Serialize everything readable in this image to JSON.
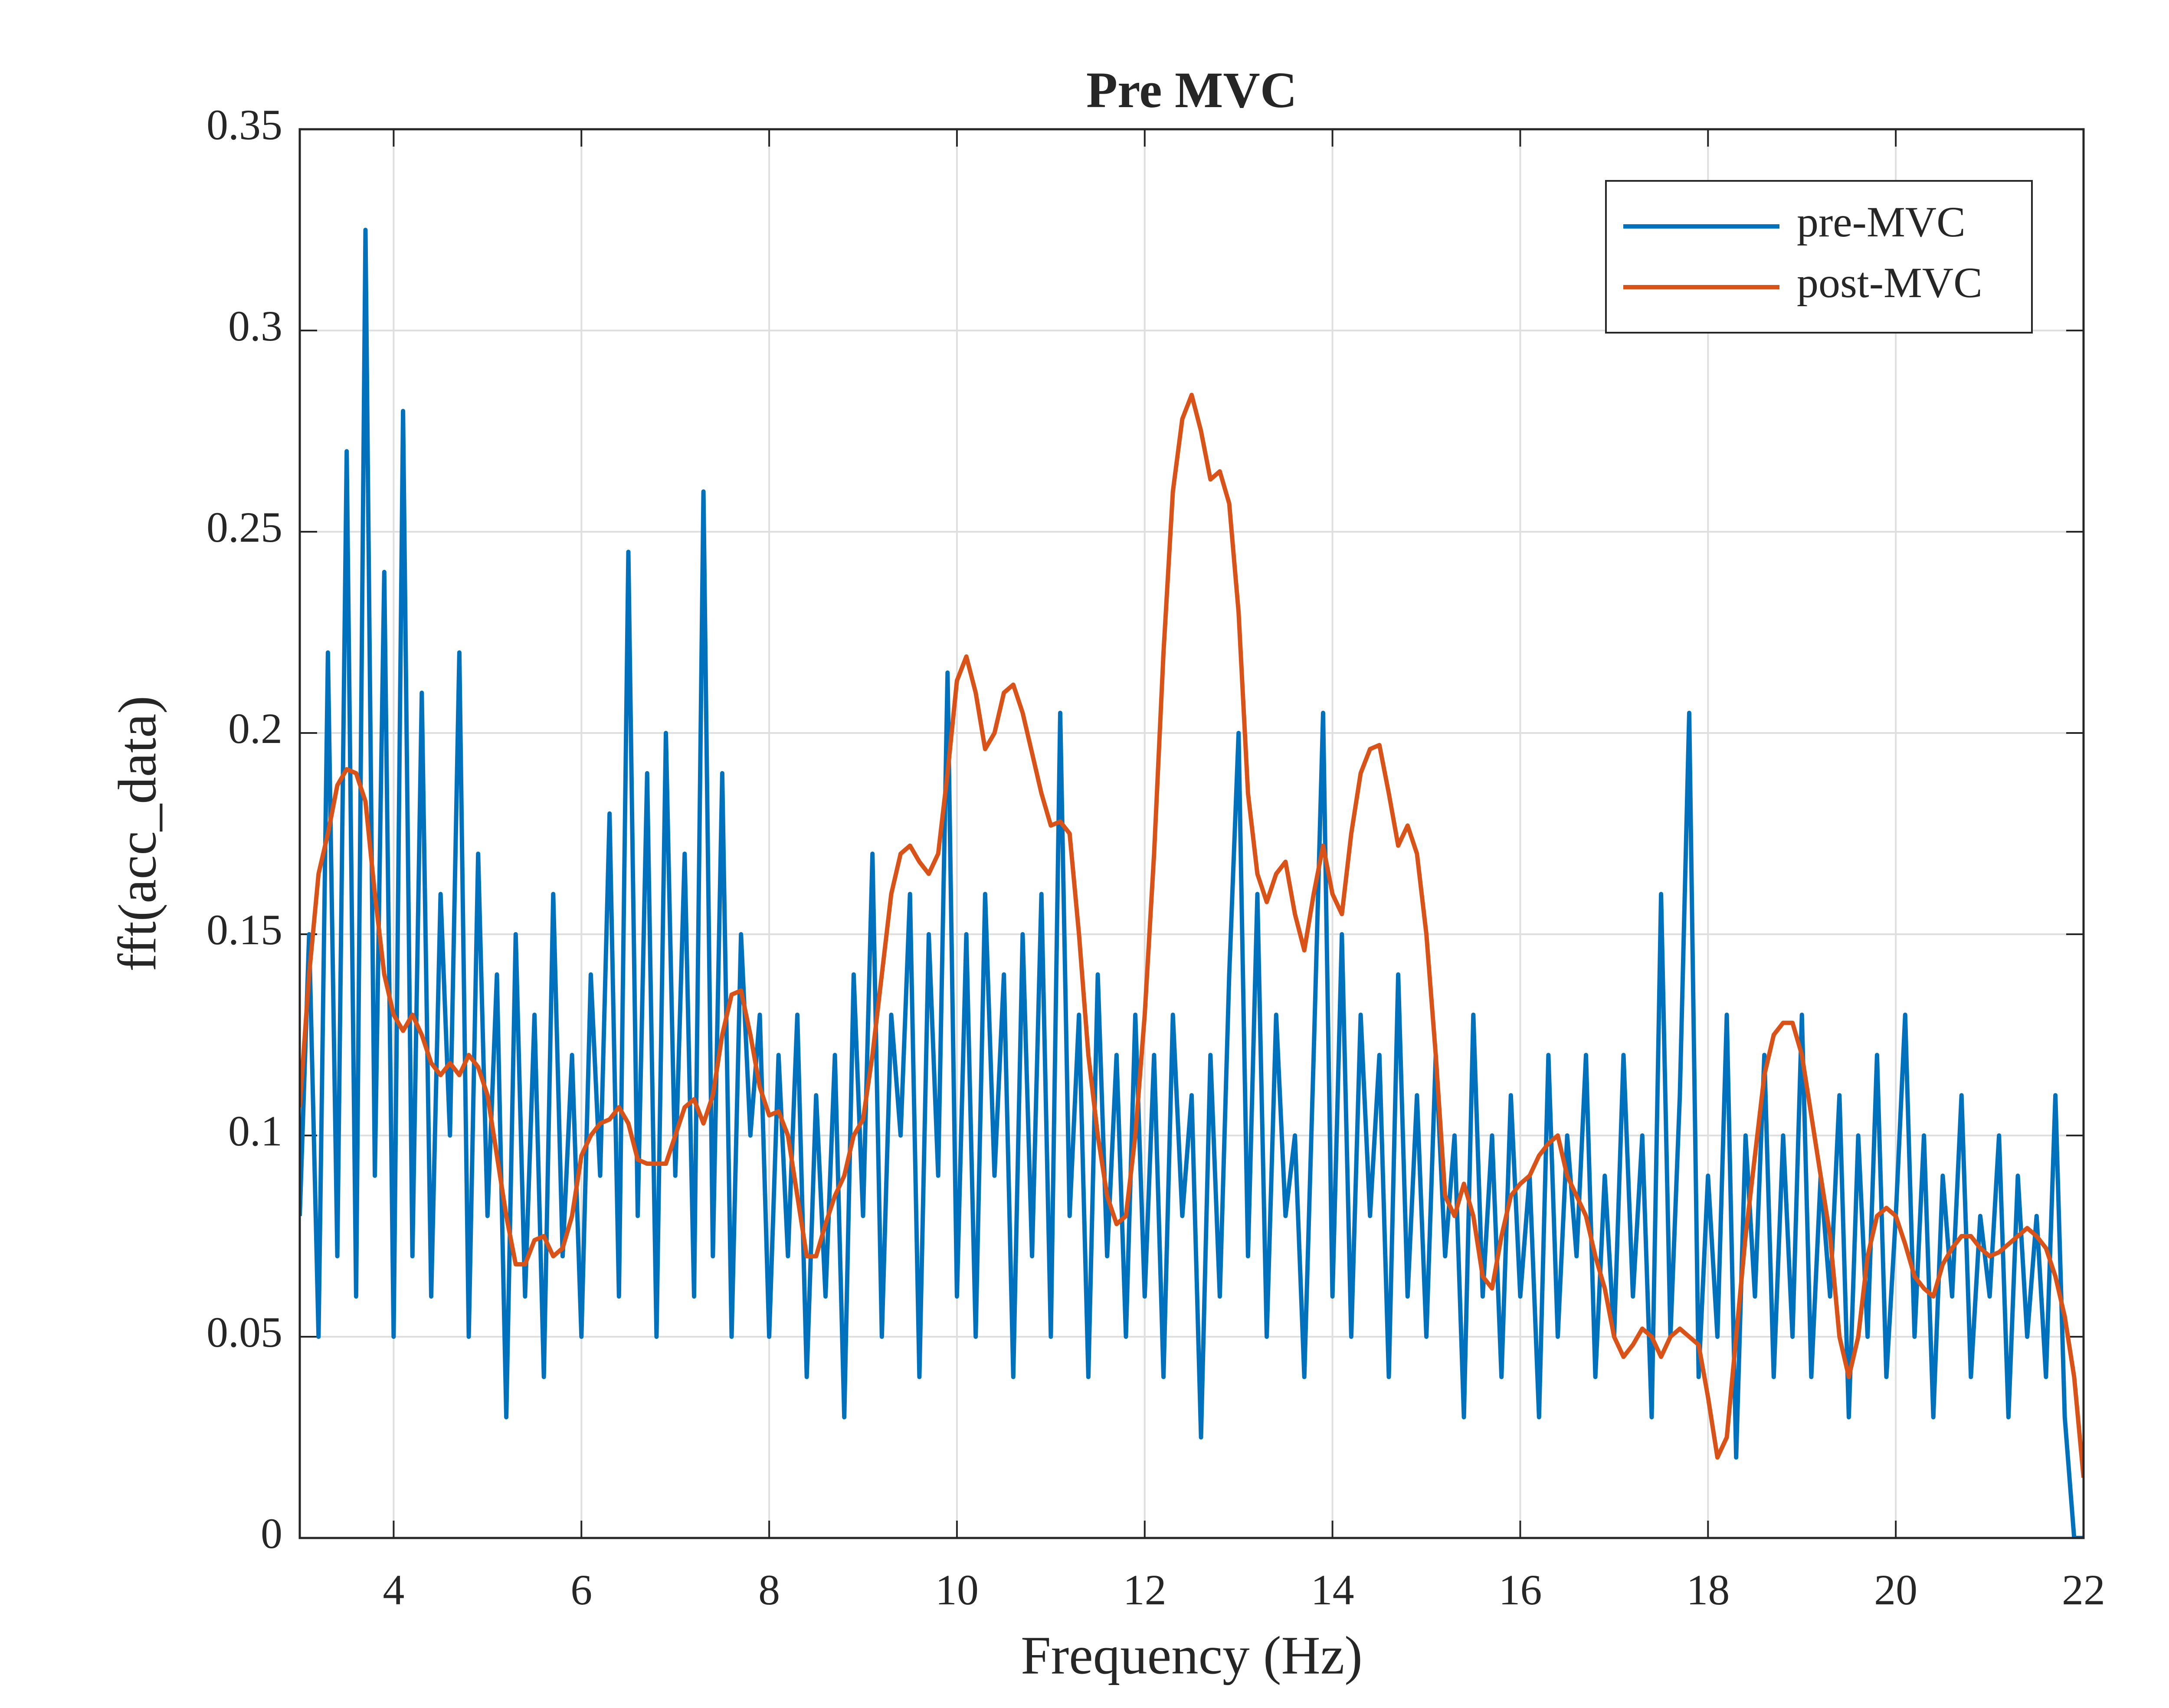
{
  "chart_data": {
    "type": "line",
    "title": "Pre MVC",
    "x_label": "Frequency (Hz)",
    "y_label": "fft(acc_data)",
    "x": [
      3,
      3.1,
      3.2,
      3.3,
      3.4,
      3.5,
      3.6,
      3.7,
      3.8,
      3.9,
      4,
      4.1,
      4.2,
      4.3,
      4.4,
      4.5,
      4.6,
      4.7,
      4.8,
      4.9,
      5,
      5.1,
      5.2,
      5.3,
      5.4,
      5.5,
      5.6,
      5.7,
      5.8,
      5.9,
      6,
      6.1,
      6.2,
      6.3,
      6.4,
      6.5,
      6.6,
      6.7,
      6.8,
      6.9,
      7,
      7.1,
      7.2,
      7.3,
      7.4,
      7.5,
      7.6,
      7.7,
      7.8,
      7.9,
      8,
      8.1,
      8.2,
      8.3,
      8.4,
      8.5,
      8.6,
      8.7,
      8.8,
      8.9,
      9,
      9.1,
      9.2,
      9.3,
      9.4,
      9.5,
      9.6,
      9.7,
      9.8,
      9.9,
      10,
      10.1,
      10.2,
      10.3,
      10.4,
      10.5,
      10.6,
      10.7,
      10.8,
      10.9,
      11,
      11.1,
      11.2,
      11.3,
      11.4,
      11.5,
      11.6,
      11.7,
      11.8,
      11.9,
      12,
      12.1,
      12.2,
      12.3,
      12.4,
      12.5,
      12.6,
      12.7,
      12.8,
      12.9,
      13,
      13.1,
      13.2,
      13.3,
      13.4,
      13.5,
      13.6,
      13.7,
      13.8,
      13.9,
      14,
      14.1,
      14.2,
      14.3,
      14.4,
      14.5,
      14.6,
      14.7,
      14.8,
      14.9,
      15,
      15.1,
      15.2,
      15.3,
      15.4,
      15.5,
      15.6,
      15.7,
      15.8,
      15.9,
      16,
      16.1,
      16.2,
      16.3,
      16.4,
      16.5,
      16.6,
      16.7,
      16.8,
      16.9,
      17,
      17.1,
      17.2,
      17.3,
      17.4,
      17.5,
      17.6,
      17.7,
      17.8,
      17.9,
      18,
      18.1,
      18.2,
      18.3,
      18.4,
      18.5,
      18.6,
      18.7,
      18.8,
      18.9,
      19,
      19.1,
      19.2,
      19.3,
      19.4,
      19.5,
      19.6,
      19.7,
      19.8,
      19.9,
      20,
      20.1,
      20.2,
      20.3,
      20.4,
      20.5,
      20.6,
      20.7,
      20.8,
      20.9,
      21,
      21.1,
      21.2,
      21.3,
      21.4,
      21.5,
      21.6,
      21.7,
      21.8,
      21.9,
      22
    ],
    "series": [
      {
        "name": "pre-MVC",
        "color": "#0072bd",
        "values": [
          0.08,
          0.15,
          0.05,
          0.22,
          0.07,
          0.27,
          0.06,
          0.325,
          0.09,
          0.24,
          0.05,
          0.28,
          0.07,
          0.21,
          0.06,
          0.16,
          0.1,
          0.22,
          0.05,
          0.17,
          0.08,
          0.14,
          0.03,
          0.15,
          0.06,
          0.13,
          0.04,
          0.16,
          0.07,
          0.12,
          0.05,
          0.14,
          0.09,
          0.18,
          0.06,
          0.245,
          0.08,
          0.19,
          0.05,
          0.2,
          0.09,
          0.17,
          0.06,
          0.26,
          0.07,
          0.19,
          0.05,
          0.15,
          0.1,
          0.13,
          0.05,
          0.12,
          0.07,
          0.13,
          0.04,
          0.11,
          0.06,
          0.12,
          0.03,
          0.14,
          0.08,
          0.17,
          0.05,
          0.13,
          0.1,
          0.16,
          0.04,
          0.15,
          0.09,
          0.215,
          0.06,
          0.15,
          0.05,
          0.16,
          0.09,
          0.14,
          0.04,
          0.15,
          0.07,
          0.16,
          0.05,
          0.205,
          0.08,
          0.13,
          0.04,
          0.14,
          0.07,
          0.12,
          0.05,
          0.13,
          0.06,
          0.12,
          0.04,
          0.13,
          0.08,
          0.11,
          0.025,
          0.12,
          0.06,
          0.14,
          0.2,
          0.07,
          0.16,
          0.05,
          0.13,
          0.08,
          0.1,
          0.04,
          0.12,
          0.205,
          0.06,
          0.15,
          0.05,
          0.13,
          0.08,
          0.12,
          0.04,
          0.14,
          0.06,
          0.11,
          0.05,
          0.12,
          0.07,
          0.1,
          0.03,
          0.13,
          0.06,
          0.1,
          0.04,
          0.11,
          0.06,
          0.09,
          0.03,
          0.12,
          0.05,
          0.1,
          0.07,
          0.12,
          0.04,
          0.09,
          0.05,
          0.12,
          0.06,
          0.1,
          0.03,
          0.16,
          0.05,
          0.11,
          0.205,
          0.04,
          0.09,
          0.05,
          0.13,
          0.02,
          0.1,
          0.06,
          0.12,
          0.04,
          0.1,
          0.05,
          0.13,
          0.04,
          0.09,
          0.06,
          0.11,
          0.03,
          0.1,
          0.05,
          0.12,
          0.04,
          0.08,
          0.13,
          0.05,
          0.1,
          0.03,
          0.09,
          0.06,
          0.11,
          0.04,
          0.08,
          0.06,
          0.1,
          0.03,
          0.09,
          0.05,
          0.08,
          0.04,
          0.11,
          0.03,
          0,
          0
        ]
      },
      {
        "name": "post-MVC",
        "color": "#d95319",
        "values": [
          0.107,
          0.14,
          0.165,
          0.175,
          0.187,
          0.191,
          0.19,
          0.183,
          0.16,
          0.14,
          0.13,
          0.126,
          0.13,
          0.125,
          0.118,
          0.115,
          0.118,
          0.115,
          0.12,
          0.117,
          0.11,
          0.095,
          0.08,
          0.068,
          0.068,
          0.074,
          0.075,
          0.07,
          0.072,
          0.08,
          0.095,
          0.1,
          0.103,
          0.104,
          0.107,
          0.103,
          0.094,
          0.093,
          0.093,
          0.093,
          0.1,
          0.107,
          0.109,
          0.103,
          0.11,
          0.125,
          0.135,
          0.136,
          0.125,
          0.112,
          0.105,
          0.106,
          0.1,
          0.085,
          0.07,
          0.07,
          0.078,
          0.085,
          0.09,
          0.1,
          0.104,
          0.12,
          0.14,
          0.16,
          0.17,
          0.172,
          0.168,
          0.165,
          0.17,
          0.19,
          0.213,
          0.219,
          0.21,
          0.196,
          0.2,
          0.21,
          0.212,
          0.205,
          0.195,
          0.185,
          0.177,
          0.178,
          0.175,
          0.15,
          0.12,
          0.1,
          0.085,
          0.078,
          0.08,
          0.1,
          0.13,
          0.17,
          0.22,
          0.26,
          0.278,
          0.284,
          0.275,
          0.263,
          0.265,
          0.257,
          0.23,
          0.185,
          0.165,
          0.158,
          0.165,
          0.168,
          0.155,
          0.146,
          0.16,
          0.172,
          0.16,
          0.155,
          0.175,
          0.19,
          0.196,
          0.197,
          0.185,
          0.172,
          0.177,
          0.17,
          0.15,
          0.12,
          0.085,
          0.08,
          0.088,
          0.08,
          0.065,
          0.062,
          0.075,
          0.085,
          0.088,
          0.09,
          0.095,
          0.098,
          0.1,
          0.09,
          0.085,
          0.08,
          0.07,
          0.062,
          0.05,
          0.045,
          0.048,
          0.052,
          0.05,
          0.045,
          0.05,
          0.052,
          0.05,
          0.048,
          0.035,
          0.02,
          0.025,
          0.05,
          0.075,
          0.095,
          0.115,
          0.125,
          0.128,
          0.128,
          0.12,
          0.105,
          0.09,
          0.075,
          0.05,
          0.04,
          0.05,
          0.07,
          0.08,
          0.082,
          0.08,
          0.073,
          0.065,
          0.062,
          0.06,
          0.068,
          0.072,
          0.075,
          0.075,
          0.072,
          0.07,
          0.071,
          0.073,
          0.075,
          0.077,
          0.075,
          0.072,
          0.065,
          0.055,
          0.04,
          0.015
        ]
      }
    ],
    "xlim": [
      3,
      22
    ],
    "xticks": [
      4,
      6,
      8,
      10,
      12,
      14,
      16,
      18,
      20,
      22
    ],
    "ylim": [
      0,
      0.35
    ],
    "yticks": [
      0,
      0.05,
      0.1,
      0.15,
      0.2,
      0.25,
      0.3,
      0.35
    ],
    "grid": true,
    "legend": "northeast"
  }
}
